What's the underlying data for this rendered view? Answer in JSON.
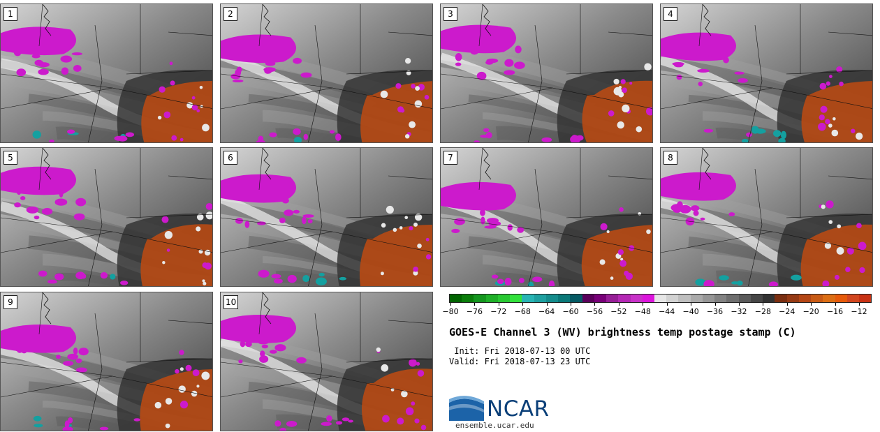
{
  "panels": [
    {
      "label": "1"
    },
    {
      "label": "2"
    },
    {
      "label": "3"
    },
    {
      "label": "4"
    },
    {
      "label": "5"
    },
    {
      "label": "6"
    },
    {
      "label": "7"
    },
    {
      "label": "8"
    },
    {
      "label": "9"
    },
    {
      "label": "10"
    }
  ],
  "colorbar": {
    "colors": [
      "#006400",
      "#0a7d0a",
      "#14961e",
      "#1eaf28",
      "#28c832",
      "#32e13c",
      "#28b4b4",
      "#1ea0a0",
      "#148c8c",
      "#0a7878",
      "#055a64",
      "#5a005a",
      "#780078",
      "#961e96",
      "#b428b4",
      "#c832c8",
      "#dc14dc",
      "#e6e6e6",
      "#d2d2d2",
      "#bebebe",
      "#aaaaaa",
      "#969696",
      "#828282",
      "#6e6e6e",
      "#5a5a5a",
      "#464646",
      "#323232",
      "#7a2e10",
      "#963a14",
      "#b44614",
      "#c85a14",
      "#dc6e14",
      "#e65a0a",
      "#d2461e",
      "#c83214"
    ],
    "tick_labels": [
      "-80",
      "-76",
      "-72",
      "-68",
      "-64",
      "-60",
      "-56",
      "-52",
      "-48",
      "-44",
      "-40",
      "-36",
      "-32",
      "-28",
      "-24",
      "-20",
      "-16",
      "-12"
    ]
  },
  "title": "GOES-E Channel 3 (WV) brightness temp postage stamp (C)",
  "init": " Init: Fri 2018-07-13 00 UTC",
  "valid": "Valid: Fri 2018-07-13 23 UTC",
  "logo": {
    "text": "NCAR",
    "url": "ensemble.ucar.edu"
  }
}
